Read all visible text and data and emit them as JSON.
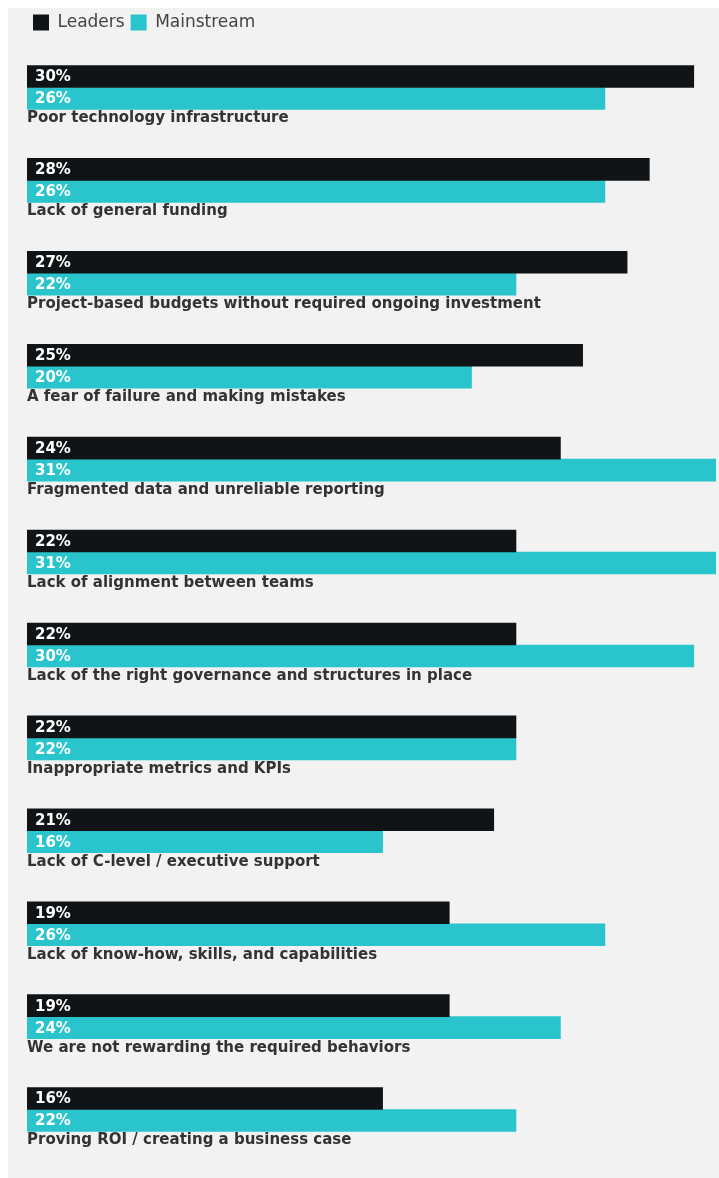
{
  "chart_data": {
    "type": "bar",
    "orientation": "horizontal",
    "legend": "top left",
    "categories": [
      "Poor technology infrastructure",
      "Lack of general funding",
      "Project-based budgets without required ongoing investment",
      "A fear of failure and making mistakes",
      "Fragmented data and unreliable reporting",
      "Lack of alignment between teams",
      "Lack of the right governance and structures in place",
      "Inappropriate metrics and KPIs",
      "Lack of C-level / executive support",
      "Lack of know-how, skills, and capabilities",
      "We are not rewarding the required behaviors",
      "Proving ROI / creating a business case"
    ],
    "series": [
      {
        "name": "Leaders",
        "color": "#111416",
        "values": [
          30,
          28,
          27,
          25,
          24,
          22,
          22,
          22,
          21,
          19,
          19,
          16
        ],
        "value_labels": [
          "30%",
          "28%",
          "27%",
          "25%",
          "24%",
          "22%",
          "22%",
          "22%",
          "21%",
          "19%",
          "19%",
          "16%"
        ]
      },
      {
        "name": "Mainstream",
        "color": "#29c4cc",
        "values": [
          26,
          26,
          22,
          20,
          31,
          31,
          30,
          22,
          16,
          26,
          24,
          22
        ],
        "value_labels": [
          "26%",
          "26%",
          "22%",
          "20%",
          "31%",
          "31%",
          "30%",
          "22%",
          "16%",
          "26%",
          "24%",
          "22%"
        ]
      }
    ]
  }
}
